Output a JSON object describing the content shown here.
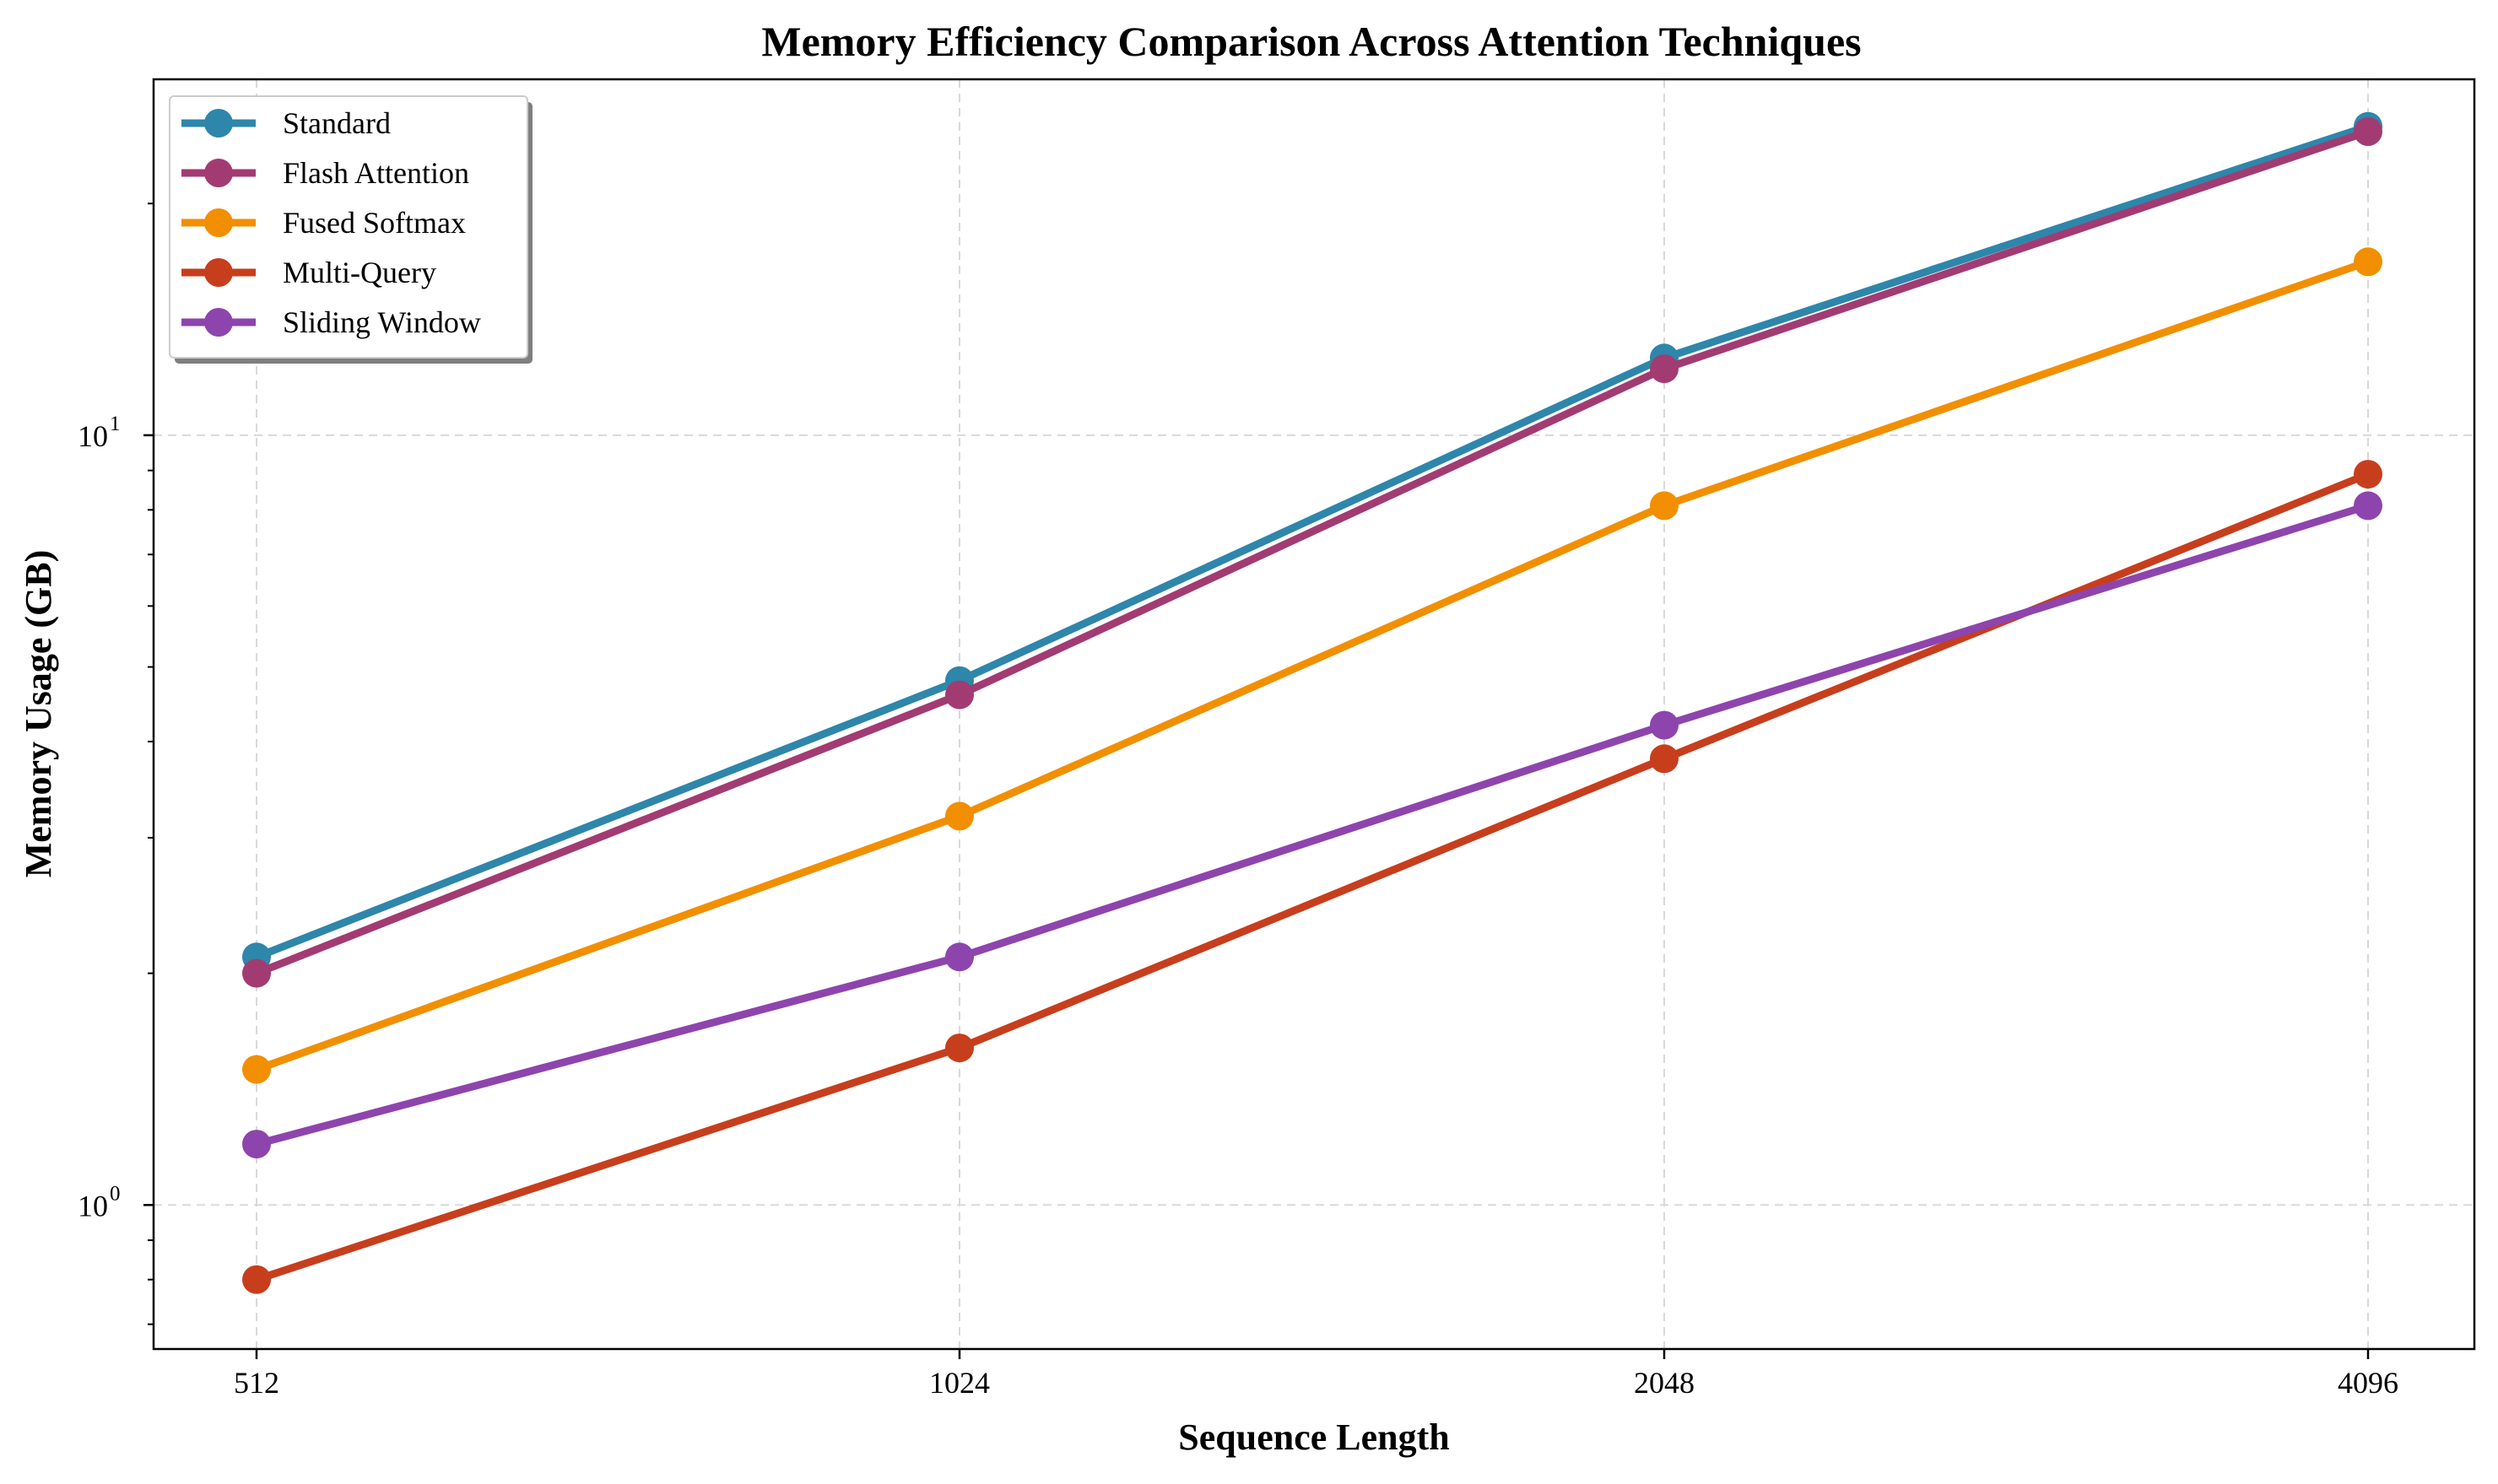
{
  "chart_data": {
    "type": "line",
    "title": "Memory Efficiency Comparison Across Attention Techniques",
    "xlabel": "Sequence Length",
    "ylabel": "Memory Usage (GB)",
    "x": [
      512,
      1024,
      2048,
      4096
    ],
    "x_tick_labels": [
      "512",
      "1024",
      "2048",
      "4096"
    ],
    "y_scale": "log",
    "ylim": [
      0.65,
      29
    ],
    "y_tick_labels": [
      {
        "value": 1,
        "base": "10",
        "exp": "0"
      },
      {
        "value": 10,
        "base": "10",
        "exp": "1"
      }
    ],
    "grid": true,
    "legend_position": "top-left",
    "series": [
      {
        "name": "Standard",
        "color": "#2e86ab",
        "values": [
          2.1,
          4.8,
          12.6,
          25.2
        ]
      },
      {
        "name": "Flash Attention",
        "color": "#a23b72",
        "values": [
          2.0,
          4.6,
          12.2,
          24.8
        ]
      },
      {
        "name": "Fused Softmax",
        "color": "#f18f01",
        "values": [
          1.5,
          3.2,
          8.1,
          16.8
        ]
      },
      {
        "name": "Multi-Query",
        "color": "#c73e1d",
        "values": [
          0.8,
          1.6,
          3.8,
          8.9
        ]
      },
      {
        "name": "Sliding Window",
        "color": "#8e44ad",
        "values": [
          1.2,
          2.1,
          4.2,
          8.1
        ]
      }
    ]
  }
}
